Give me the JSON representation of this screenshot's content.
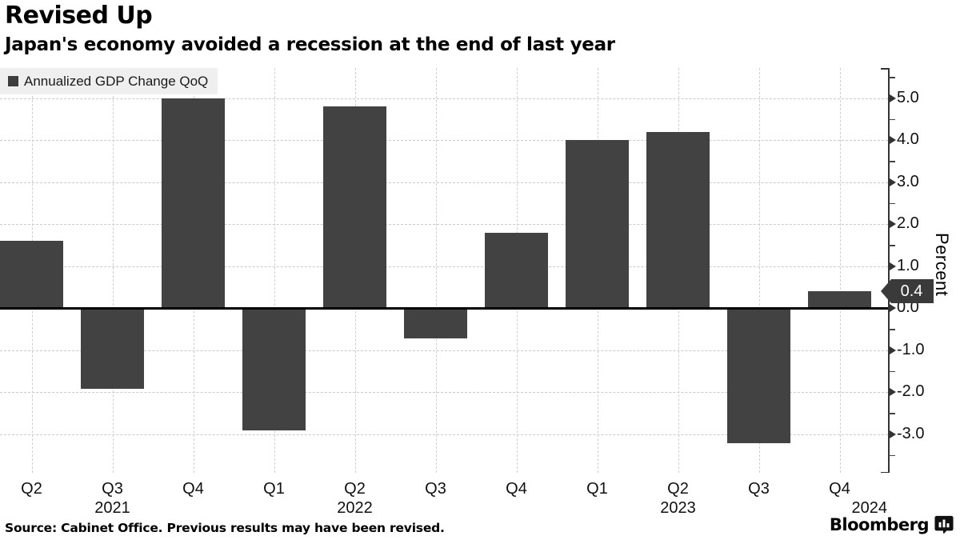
{
  "header": {
    "title": "Revised Up",
    "subtitle": "Japan's economy avoided a recession at the end of last year"
  },
  "legend": {
    "label": "Annualized GDP Change QoQ"
  },
  "chart_data": {
    "type": "bar",
    "title": "Revised Up",
    "subtitle": "Japan's economy avoided a recession at the end of last year",
    "series_name": "Annualized GDP Change QoQ",
    "categories": [
      "Q2",
      "Q3",
      "Q4",
      "Q1",
      "Q2",
      "Q3",
      "Q4",
      "Q1",
      "Q2",
      "Q3",
      "Q4"
    ],
    "values": [
      1.6,
      -1.9,
      5.0,
      -2.9,
      4.8,
      -0.7,
      1.8,
      4.0,
      4.2,
      -3.2,
      0.4
    ],
    "year_labels": [
      {
        "text": "2021",
        "index": 1
      },
      {
        "text": "2022",
        "index": 4
      },
      {
        "text": "2023",
        "index": 8
      },
      {
        "text": "2024",
        "index": 10,
        "align": "right-edge"
      }
    ],
    "xlabel": "",
    "ylabel": "Percent",
    "ylim": [
      -3.9,
      5.7
    ],
    "y_ticks_major": [
      5.0,
      4.0,
      3.0,
      2.0,
      1.0,
      0.0,
      -1.0,
      -2.0,
      -3.0
    ],
    "y_minor_step": 0.5,
    "grid": true,
    "legend_position": "top-left",
    "axis_side": "right",
    "last_value_tag": "0.4",
    "bar_color": "#424242",
    "tag_color": "#3a3a3a",
    "tag_text_color": "#ffffff"
  },
  "footer": {
    "source": "Source: Cabinet Office. Previous results may have been revised.",
    "brand": "Bloomberg",
    "brand_icon": "bar-chart-bubble"
  }
}
